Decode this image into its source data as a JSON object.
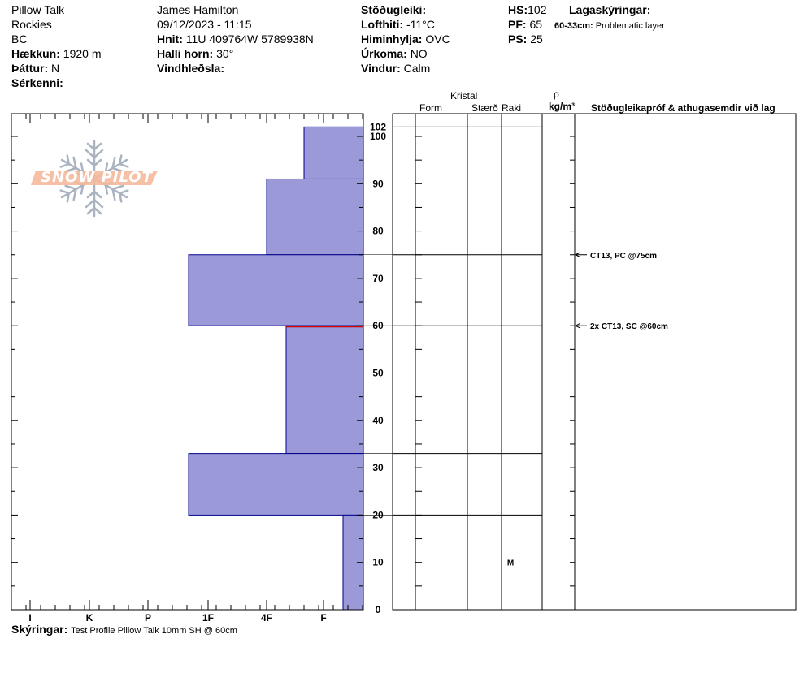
{
  "header": {
    "col1": {
      "location": "Pillow Talk",
      "range": "Rockies",
      "region": "BC",
      "elevation_label": "Hækkun:",
      "elevation_value": "1920 m",
      "aspect_label": "Þáttur:",
      "aspect_value": "N",
      "features_label": "Sérkenni:"
    },
    "col2": {
      "observer": "James Hamilton",
      "datetime": "09/12/2023 - 11:15",
      "coords_label": "Hnit:",
      "coords_value": "11U 409764W 5789938N",
      "slope_label": "Halli horn:",
      "slope_value": "30°",
      "wind_loading_label": "Vindhleðsla:"
    },
    "col3": {
      "stability_label": "Stöðugleiki:",
      "air_temp_label": "Lofthiti:",
      "air_temp_value": "-11°C",
      "sky_label": "Himinhylja:",
      "sky_value": "OVC",
      "precip_label": "Úrkoma:",
      "precip_value": "NO",
      "wind_label": "Vindur:",
      "wind_value": "Calm"
    },
    "col4": {
      "hs_label": "HS:",
      "hs_value": "102",
      "pf_label": "PF:",
      "pf_value": "65",
      "ps_label": "PS:",
      "ps_value": "25"
    },
    "col5": {
      "layer_notes_label": "Lagaskýringar:",
      "layer_note_range": "60-33cm:",
      "layer_note_text": "Problematic layer"
    }
  },
  "logo": {
    "text": "SNOW PILOT"
  },
  "columns": {
    "crystal": "Kristal",
    "form": "Form",
    "size": "Stærð",
    "moisture": "Raki",
    "density_symbol": "ρ",
    "density_unit": "kg/m³",
    "stability_tests": "Stöðugleikapróf & athugasemdir við lag"
  },
  "comments": {
    "label": "Skýringar:",
    "text": "Test Profile Pillow Talk 10mm SH @ 60cm"
  },
  "chart_data": {
    "type": "bar",
    "hardness_scale": [
      "I",
      "K",
      "P",
      "1F",
      "4F",
      "F"
    ],
    "hs": 102,
    "y_ticks": [
      0,
      10,
      20,
      30,
      40,
      50,
      60,
      70,
      80,
      90,
      100
    ],
    "hs_tick_label": "102",
    "layers": [
      {
        "top": 102,
        "bottom": 91,
        "hardness": "F+"
      },
      {
        "top": 91,
        "bottom": 75,
        "hardness": "4F"
      },
      {
        "top": 75,
        "bottom": 60,
        "hardness": "1F+"
      },
      {
        "top": 60,
        "bottom": 33,
        "hardness": "4F-"
      },
      {
        "top": 33,
        "bottom": 20,
        "hardness": "1F+"
      },
      {
        "top": 20,
        "bottom": 0,
        "hardness": "F-"
      }
    ],
    "grid_lines": [
      102,
      91,
      75,
      60,
      33,
      20
    ],
    "moisture_labels": [
      {
        "depth": 10,
        "text": "M"
      }
    ],
    "tests": [
      {
        "depth": 75,
        "text": "CT13, PC @75cm"
      },
      {
        "depth": 60,
        "text": "2x CT13, SC @60cm"
      }
    ],
    "problem_layer_depth": 60
  },
  "colors": {
    "bar_fill": "#9b99d7",
    "bar_stroke": "#00008b",
    "problem_line": "#cc0000",
    "logo": "#f4b99b",
    "flake": "#aab4c0"
  }
}
